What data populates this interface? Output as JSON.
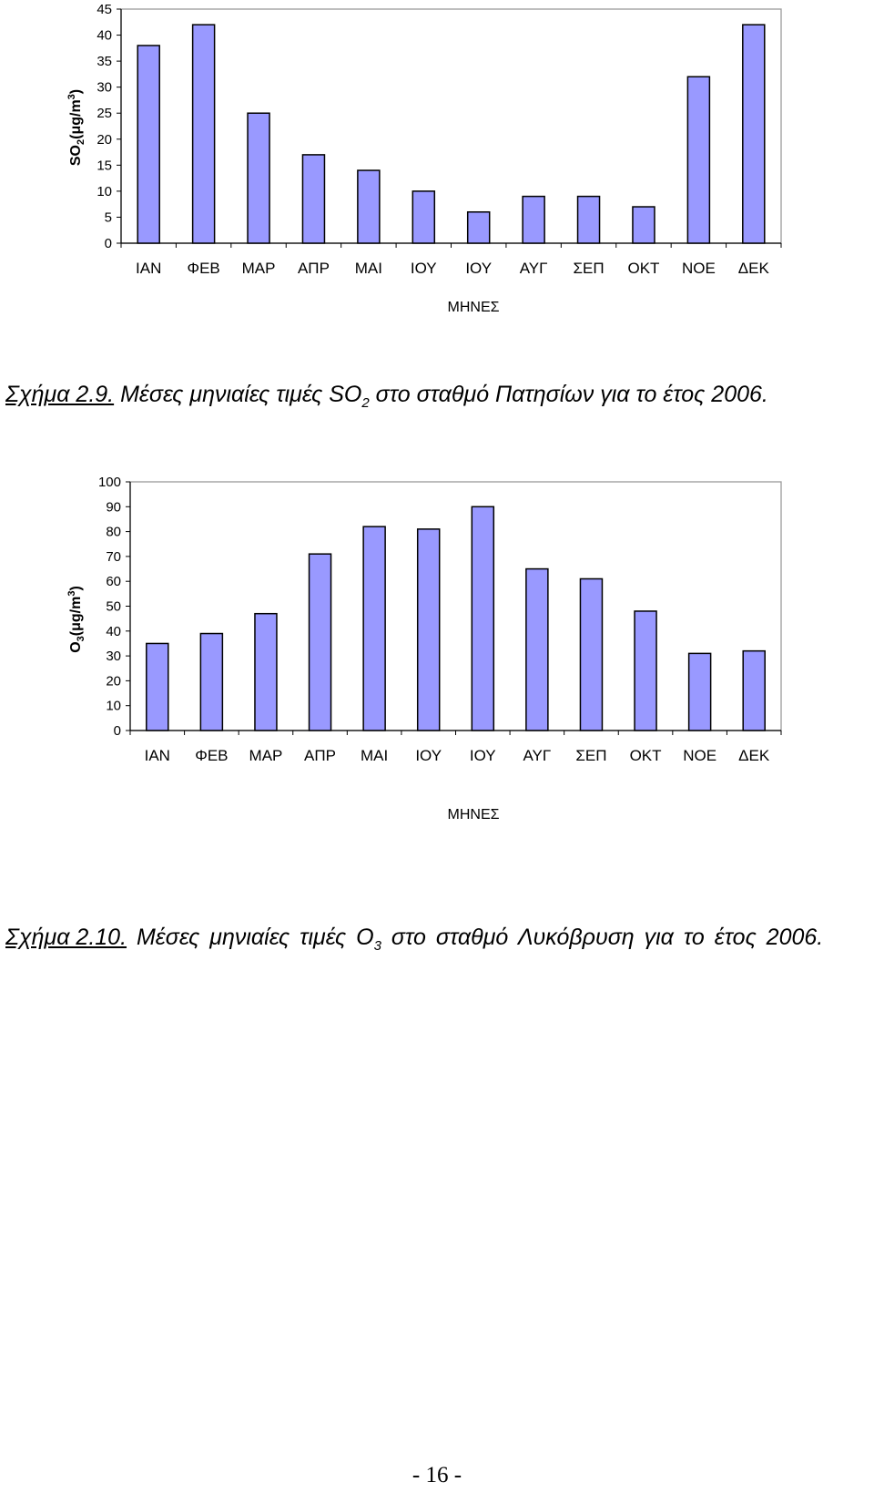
{
  "chart_data": [
    {
      "type": "bar",
      "categories": [
        "ΙΑΝ",
        "ΦΕΒ",
        "ΜΑΡ",
        "ΑΠΡ",
        "ΜΑΙ",
        "ΙΟΥ",
        "ΙΟΥ",
        "ΑΥΓ",
        "ΣΕΠ",
        "ΟΚΤ",
        "ΝΟΕ",
        "ΔΕΚ"
      ],
      "values": [
        38,
        42,
        25,
        17,
        14,
        10,
        6,
        9,
        9,
        7,
        32,
        42
      ],
      "xlabel": "ΜΗΝΕΣ",
      "ylabel": {
        "pre": "SO",
        "sub": "2",
        "mid": "(μg/m",
        "sup": "3",
        "post": ")"
      },
      "ylim": [
        0,
        45
      ],
      "yticks": [
        0,
        5,
        10,
        15,
        20,
        25,
        30,
        35,
        40,
        45
      ],
      "grid": false,
      "legend": "none",
      "bar_color": "#9999ff"
    },
    {
      "type": "bar",
      "categories": [
        "ΙΑΝ",
        "ΦΕΒ",
        "ΜΑΡ",
        "ΑΠΡ",
        "ΜΑΙ",
        "ΙΟΥ",
        "ΙΟΥ",
        "ΑΥΓ",
        "ΣΕΠ",
        "ΟΚΤ",
        "ΝΟΕ",
        "ΔΕΚ"
      ],
      "values": [
        35,
        39,
        47,
        71,
        82,
        81,
        90,
        65,
        61,
        48,
        31,
        32
      ],
      "xlabel": "ΜΗΝΕΣ",
      "ylabel": {
        "pre": "O",
        "sub": "3",
        "mid": "(μg/m",
        "sup": "3",
        "post": ")"
      },
      "ylim": [
        0,
        100
      ],
      "yticks": [
        0,
        10,
        20,
        30,
        40,
        50,
        60,
        70,
        80,
        90,
        100
      ],
      "grid": false,
      "legend": "none",
      "bar_color": "#9999ff"
    }
  ],
  "captions": [
    {
      "number": "Σχήμα 2.9.",
      "text_pre": " Μέσες μηνιαίες τιμές SO",
      "sub": "2",
      "text_post": " στο σταθμό Πατησίων για το έτος 2006."
    },
    {
      "number": "Σχήμα 2.10.",
      "text_pre": "  Μέσες μηνιαίες τιμές O",
      "sub": "3",
      "text_post": " στο σταθμό Λυκόβρυση  για το έτος 2006."
    }
  ],
  "page_number": "- 16 -"
}
